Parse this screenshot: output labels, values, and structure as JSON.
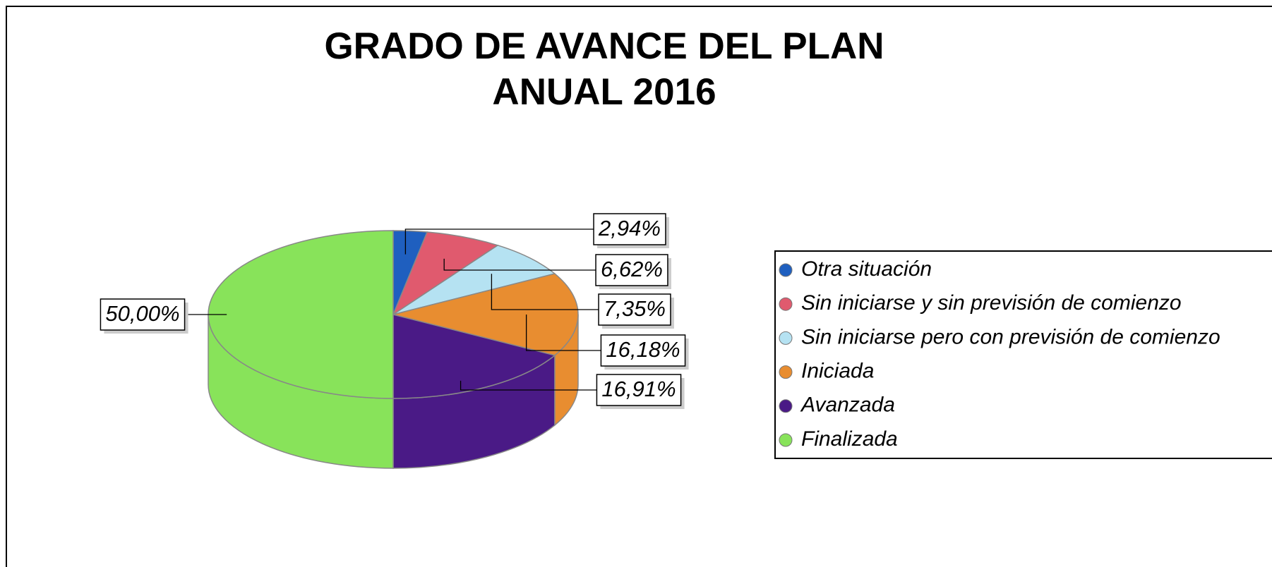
{
  "chart_data": {
    "type": "pie",
    "title": [
      "GRADO DE AVANCE DEL PLAN",
      "ANUAL 2016"
    ],
    "categories": [
      "Otra situación",
      "Sin iniciarse y sin previsión de comienzo",
      "Sin iniciarse pero con previsión de comienzo",
      "Iniciada",
      "Avanzada",
      "Finalizada"
    ],
    "values": [
      2.94,
      6.62,
      7.35,
      16.18,
      16.91,
      50.0
    ],
    "value_labels": [
      "2,94%",
      "6,62%",
      "7,35%",
      "16,18%",
      "16,91%",
      "50,00%"
    ],
    "colors": [
      "#1f5fbf",
      "#e05a6e",
      "#b5e2f2",
      "#e88d30",
      "#4a1a86",
      "#88e35a"
    ],
    "legend": "right"
  }
}
